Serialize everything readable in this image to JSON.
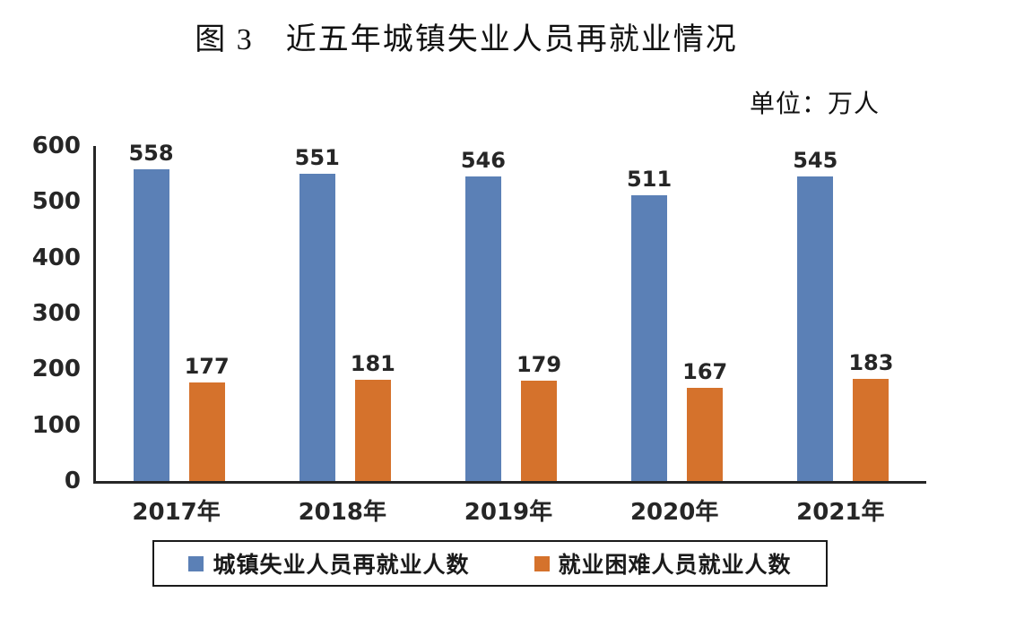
{
  "title": "图 3　近五年城镇失业人员再就业情况",
  "unit_label": "单位：万人",
  "chart_data": {
    "type": "bar",
    "categories": [
      "2017年",
      "2018年",
      "2019年",
      "2020年",
      "2021年"
    ],
    "series": [
      {
        "name": "城镇失业人员再就业人数",
        "color": "#5b80b6",
        "values": [
          558,
          551,
          546,
          511,
          545
        ]
      },
      {
        "name": "就业困难人员就业人数",
        "color": "#d5722c",
        "values": [
          177,
          181,
          179,
          167,
          183
        ]
      }
    ],
    "title": "图 3　近五年城镇失业人员再就业情况",
    "xlabel": "",
    "ylabel": "单位：万人",
    "ylim": [
      0,
      600
    ],
    "yticks": [
      0,
      100,
      200,
      300,
      400,
      500,
      600
    ],
    "grid": false,
    "data_labels": true,
    "legend_position": "bottom"
  }
}
